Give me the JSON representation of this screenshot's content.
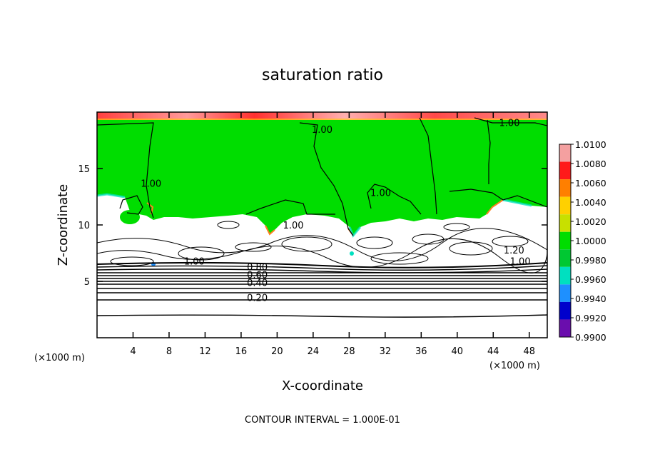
{
  "chart_data": {
    "type": "heatmap",
    "title": "saturation ratio",
    "xlabel": "X-coordinate",
    "ylabel": "Z-coordinate",
    "x_unit_left": "(×1000 m)",
    "x_unit_right": "(×1000 m)",
    "xlim": [
      0,
      50
    ],
    "ylim": [
      0,
      20
    ],
    "x_ticks": [
      4,
      8,
      12,
      16,
      20,
      24,
      28,
      32,
      36,
      40,
      44,
      48
    ],
    "y_ticks": [
      5,
      10,
      15
    ],
    "footer": "CONTOUR INTERVAL = 1.000E-01",
    "colorbar": {
      "labels": [
        "1.0100",
        "1.0080",
        "1.0060",
        "1.0040",
        "1.0020",
        "1.0000",
        "0.9980",
        "0.9960",
        "0.9940",
        "0.9920",
        "0.9900"
      ],
      "colors": [
        "#f4a0a0",
        "#ff1a1a",
        "#ff7f00",
        "#ffd000",
        "#c8e000",
        "#00dd00",
        "#00c832",
        "#00e0c0",
        "#1e90ff",
        "#0000cc",
        "#6a0dad"
      ]
    },
    "contour_labels": [
      {
        "text": "1.00",
        "x": 25.0,
        "z": 18.3
      },
      {
        "text": "1.00",
        "x": 45.8,
        "z": 18.9
      },
      {
        "text": "1.00",
        "x": 6.0,
        "z": 13.5
      },
      {
        "text": "1.00",
        "x": 31.5,
        "z": 12.7
      },
      {
        "text": "1.00",
        "x": 21.8,
        "z": 9.8
      },
      {
        "text": "1.20",
        "x": 46.3,
        "z": 7.6
      },
      {
        "text": "1.00",
        "x": 47.0,
        "z": 6.6
      },
      {
        "text": "1.00",
        "x": 10.8,
        "z": 6.6
      },
      {
        "text": "0.80",
        "x": 17.8,
        "z": 6.1
      },
      {
        "text": "0.60",
        "x": 17.8,
        "z": 5.4
      },
      {
        "text": "0.40",
        "x": 17.8,
        "z": 4.7
      },
      {
        "text": "0.20",
        "x": 17.8,
        "z": 3.4
      }
    ],
    "regions": [
      {
        "level": "1.0000",
        "description": "supersaturated green layer",
        "z_range": [
          10,
          19.1
        ]
      }
    ]
  }
}
